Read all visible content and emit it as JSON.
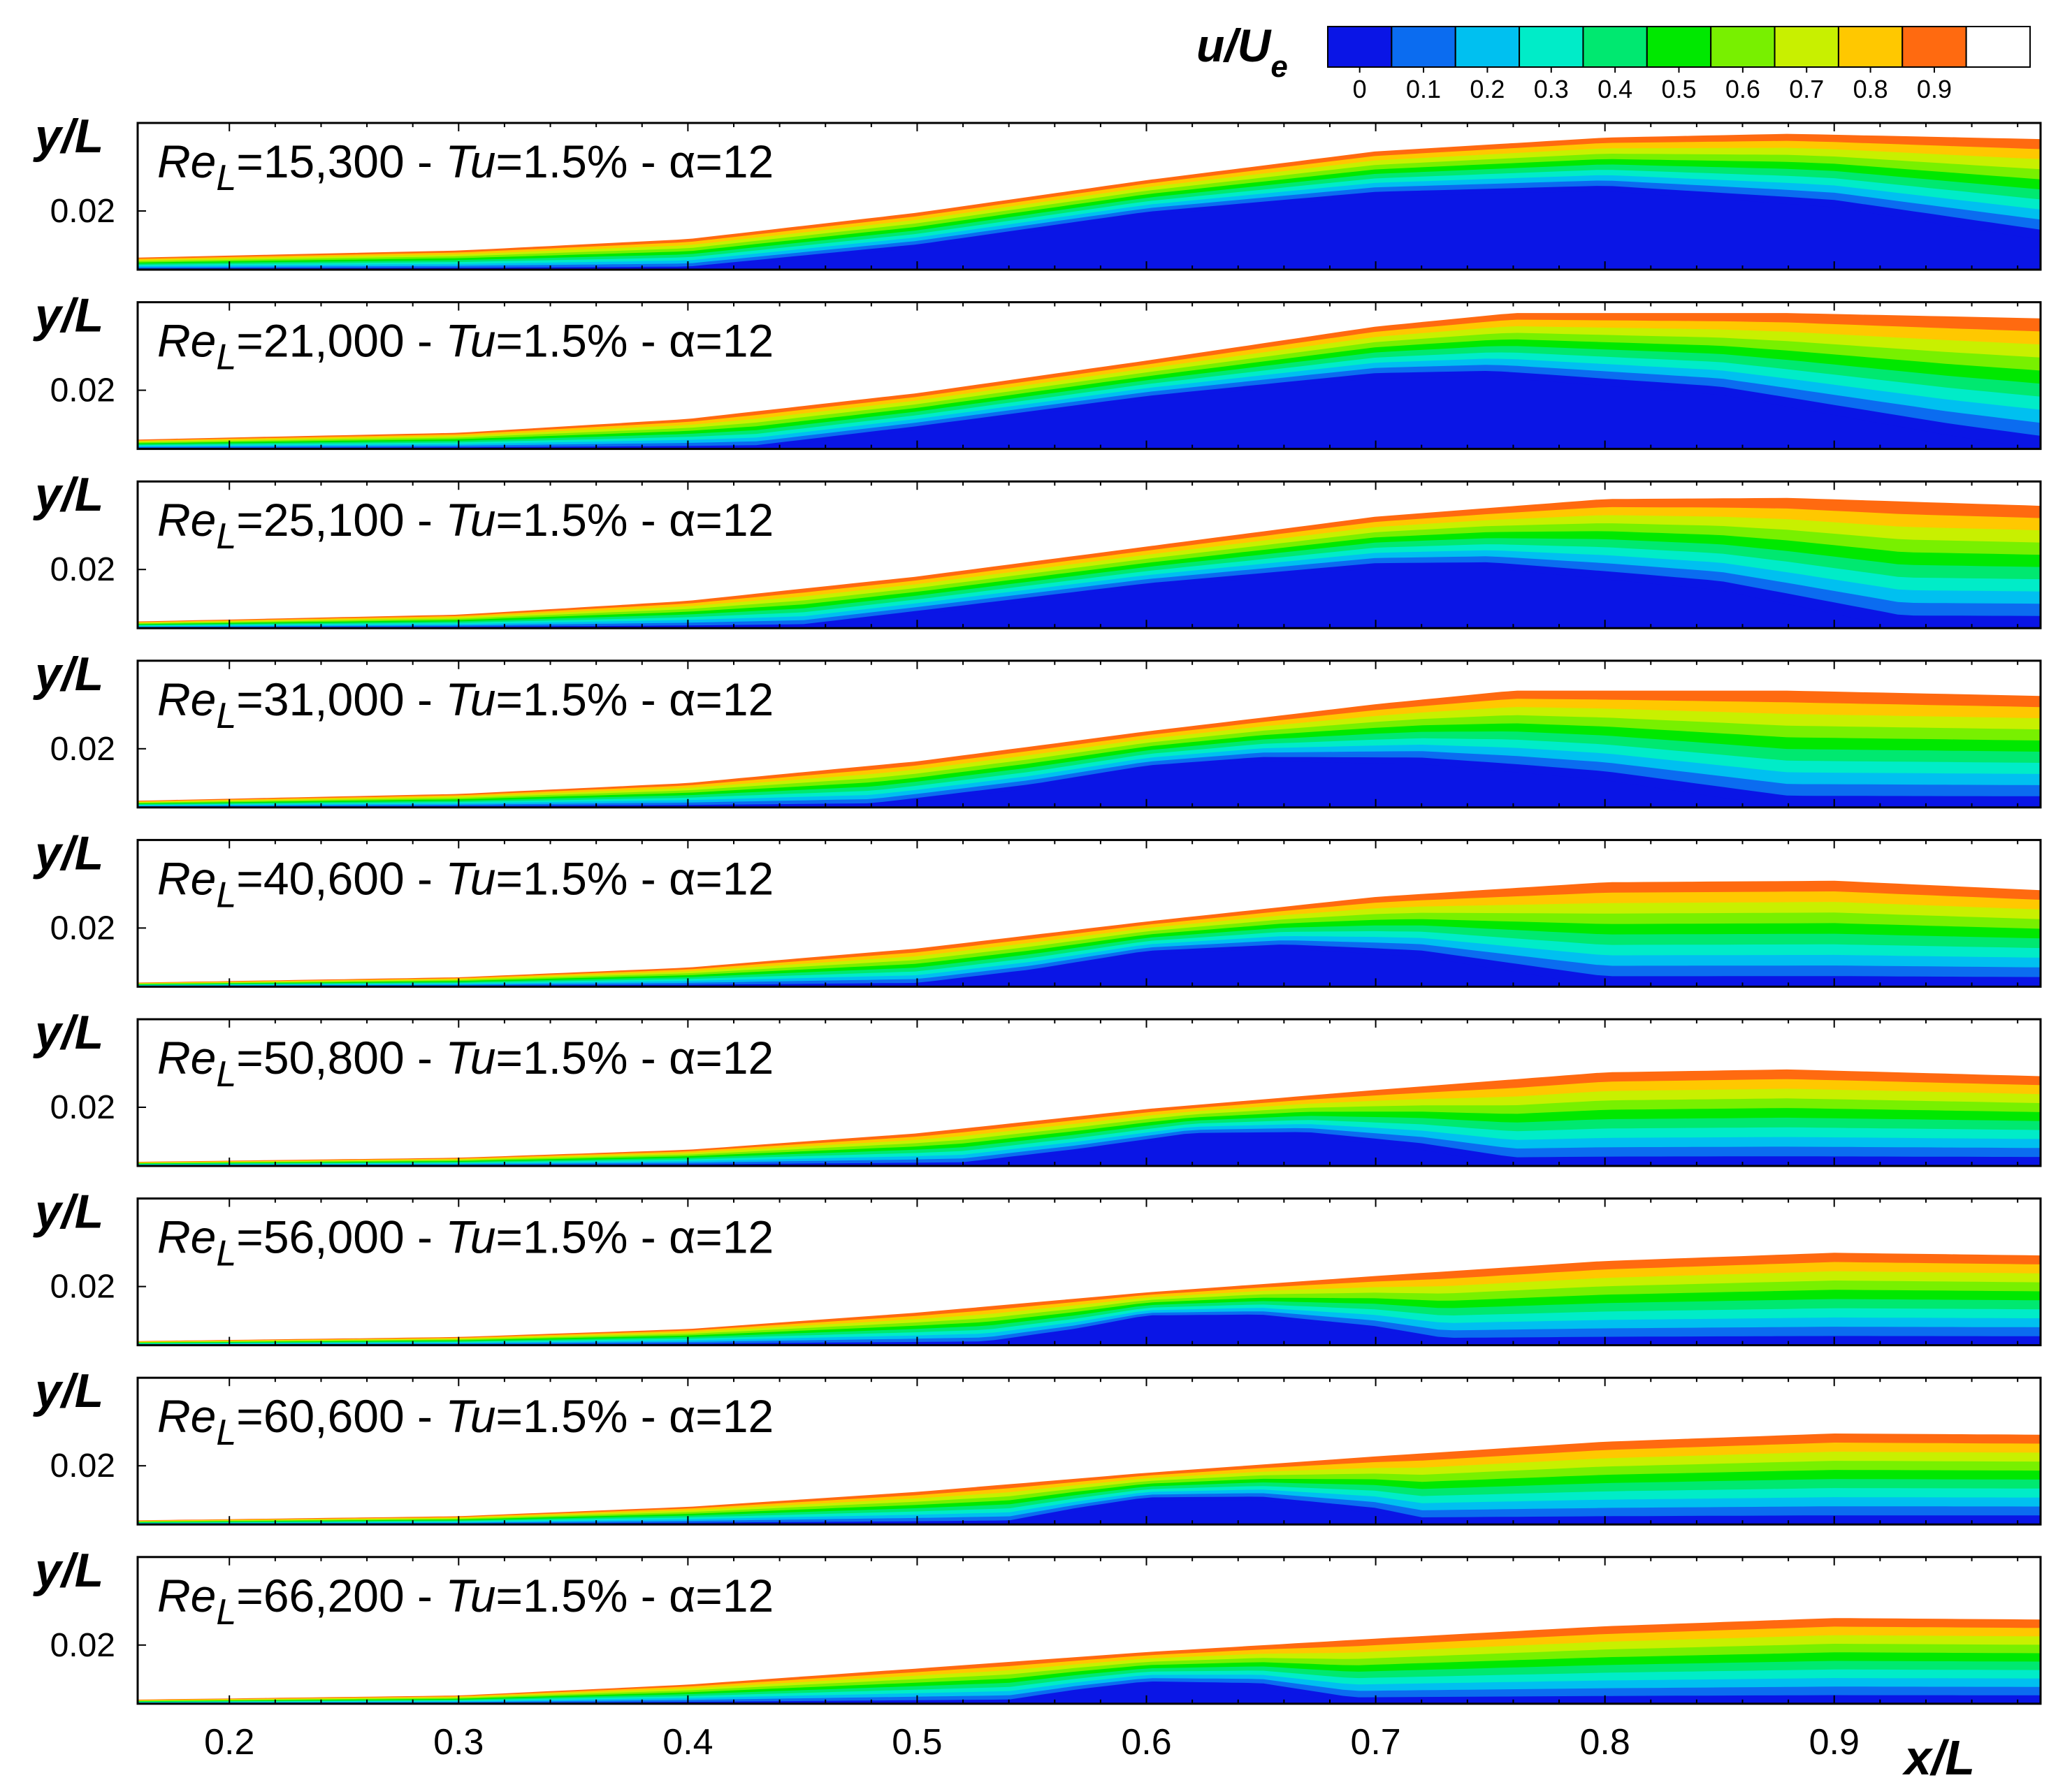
{
  "chart_data": {
    "type": "heatmap",
    "colorbar": {
      "label_main": "u/U",
      "label_sub": "e",
      "levels": [
        0,
        0.1,
        0.2,
        0.3,
        0.4,
        0.5,
        0.6,
        0.7,
        0.8,
        0.9,
        1.0
      ],
      "tick_labels": [
        "0",
        "0.1",
        "0.2",
        "0.3",
        "0.4",
        "0.5",
        "0.6",
        "0.7",
        "0.8",
        "0.9"
      ],
      "colors": [
        "#0a15e6",
        "#0b6cf0",
        "#00c0f0",
        "#00ecc8",
        "#00e870",
        "#00e800",
        "#78f000",
        "#c8f000",
        "#ffc800",
        "#ff6a10",
        "#ffffff"
      ]
    },
    "x_axis": {
      "label": "x/L",
      "range": [
        0.16,
        0.99
      ],
      "tick_values": [
        0.2,
        0.3,
        0.4,
        0.5,
        0.6,
        0.7,
        0.8,
        0.9
      ],
      "tick_labels": [
        "0.2",
        "0.3",
        "0.4",
        "0.5",
        "0.6",
        "0.7",
        "0.8",
        "0.9"
      ]
    },
    "y_axis": {
      "label": "y/L",
      "range": [
        0,
        0.05
      ],
      "tick_value": 0.02,
      "tick_label": "0.02"
    },
    "panels": [
      {
        "re_prefix": "Re",
        "re_sub": "L",
        "re_value": "=15,300 - ",
        "tu_prefix": "Tu",
        "tu_value": "=1.5% - α=12",
        "bl_edge": [
          [
            0.16,
            0.0041
          ],
          [
            0.3,
            0.0065
          ],
          [
            0.4,
            0.0104
          ],
          [
            0.5,
            0.0194
          ],
          [
            0.6,
            0.0305
          ],
          [
            0.7,
            0.0403
          ],
          [
            0.8,
            0.045
          ],
          [
            0.88,
            0.0463
          ],
          [
            0.99,
            0.0445
          ]
        ],
        "bubble_top": [
          [
            0.4,
            0.0
          ],
          [
            0.5,
            0.0074
          ],
          [
            0.6,
            0.0185
          ],
          [
            0.7,
            0.025
          ],
          [
            0.8,
            0.0268
          ],
          [
            0.9,
            0.0213
          ],
          [
            0.99,
            0.0102
          ]
        ]
      },
      {
        "re_prefix": "Re",
        "re_sub": "L",
        "re_value": "=21,000 - ",
        "tu_prefix": "Tu",
        "tu_value": "=1.5% - α=12",
        "bl_edge": [
          [
            0.16,
            0.0032
          ],
          [
            0.3,
            0.0055
          ],
          [
            0.4,
            0.0102
          ],
          [
            0.5,
            0.019
          ],
          [
            0.6,
            0.0301
          ],
          [
            0.7,
            0.0417
          ],
          [
            0.76,
            0.0463
          ],
          [
            0.88,
            0.0463
          ],
          [
            0.99,
            0.0445
          ]
        ],
        "bubble_top": [
          [
            0.43,
            0.0
          ],
          [
            0.5,
            0.0065
          ],
          [
            0.6,
            0.0167
          ],
          [
            0.7,
            0.0241
          ],
          [
            0.75,
            0.0245
          ],
          [
            0.85,
            0.0185
          ],
          [
            0.95,
            0.0046
          ],
          [
            0.99,
            0.0
          ]
        ]
      },
      {
        "re_prefix": "Re",
        "re_sub": "L",
        "re_value": "=25,100 - ",
        "tu_prefix": "Tu",
        "tu_value": "=1.5% - α=12",
        "bl_edge": [
          [
            0.16,
            0.0023
          ],
          [
            0.3,
            0.0046
          ],
          [
            0.4,
            0.0093
          ],
          [
            0.5,
            0.0176
          ],
          [
            0.6,
            0.0278
          ],
          [
            0.7,
            0.038
          ],
          [
            0.8,
            0.044
          ],
          [
            0.88,
            0.0444
          ],
          [
            0.99,
            0.0417
          ]
        ],
        "bubble_top": [
          [
            0.45,
            0.0
          ],
          [
            0.5,
            0.0046
          ],
          [
            0.6,
            0.0139
          ],
          [
            0.7,
            0.0204
          ],
          [
            0.75,
            0.0204
          ],
          [
            0.85,
            0.013
          ],
          [
            0.93,
            0.0
          ],
          [
            0.99,
            0.0
          ]
        ]
      },
      {
        "re_prefix": "Re",
        "re_sub": "L",
        "re_value": "=31,000 - ",
        "tu_prefix": "Tu",
        "tu_value": "=1.5% - α=12",
        "bl_edge": [
          [
            0.16,
            0.0023
          ],
          [
            0.3,
            0.0046
          ],
          [
            0.4,
            0.0083
          ],
          [
            0.5,
            0.0157
          ],
          [
            0.6,
            0.0259
          ],
          [
            0.7,
            0.0352
          ],
          [
            0.76,
            0.0398
          ],
          [
            0.88,
            0.0398
          ],
          [
            0.99,
            0.038
          ]
        ],
        "bubble_top": [
          [
            0.48,
            0.0
          ],
          [
            0.55,
            0.0065
          ],
          [
            0.6,
            0.013
          ],
          [
            0.65,
            0.0157
          ],
          [
            0.72,
            0.0148
          ],
          [
            0.8,
            0.0093
          ],
          [
            0.88,
            0.0
          ],
          [
            0.99,
            0.0
          ]
        ]
      },
      {
        "re_prefix": "Re",
        "re_sub": "L",
        "re_value": "=40,600 - ",
        "tu_prefix": "Tu",
        "tu_value": "=1.5% - α=12",
        "bl_edge": [
          [
            0.16,
            0.0014
          ],
          [
            0.3,
            0.0032
          ],
          [
            0.4,
            0.0065
          ],
          [
            0.5,
            0.013
          ],
          [
            0.6,
            0.0222
          ],
          [
            0.7,
            0.0306
          ],
          [
            0.8,
            0.0356
          ],
          [
            0.9,
            0.0361
          ],
          [
            0.99,
            0.0329
          ]
        ],
        "bubble_top": [
          [
            0.5,
            0.0
          ],
          [
            0.55,
            0.0046
          ],
          [
            0.6,
            0.0111
          ],
          [
            0.66,
            0.013
          ],
          [
            0.72,
            0.0102
          ],
          [
            0.8,
            0.0
          ],
          [
            0.99,
            0.0
          ]
        ]
      },
      {
        "re_prefix": "Re",
        "re_sub": "L",
        "re_value": "=50,800 - ",
        "tu_prefix": "Tu",
        "tu_value": "=1.5% - α=12",
        "bl_edge": [
          [
            0.16,
            0.0014
          ],
          [
            0.3,
            0.0028
          ],
          [
            0.4,
            0.0055
          ],
          [
            0.5,
            0.0111
          ],
          [
            0.6,
            0.0194
          ],
          [
            0.7,
            0.0259
          ],
          [
            0.8,
            0.0319
          ],
          [
            0.88,
            0.0329
          ],
          [
            0.99,
            0.0306
          ]
        ],
        "bubble_top": [
          [
            0.52,
            0.0
          ],
          [
            0.57,
            0.0046
          ],
          [
            0.62,
            0.0102
          ],
          [
            0.67,
            0.0102
          ],
          [
            0.72,
            0.0056
          ],
          [
            0.76,
            0.0
          ],
          [
            0.99,
            0.0
          ]
        ]
      },
      {
        "re_prefix": "Re",
        "re_sub": "L",
        "re_value": "=56,000 - ",
        "tu_prefix": "Tu",
        "tu_value": "=1.5% - α=12",
        "bl_edge": [
          [
            0.16,
            0.0014
          ],
          [
            0.3,
            0.0028
          ],
          [
            0.4,
            0.0055
          ],
          [
            0.5,
            0.0111
          ],
          [
            0.6,
            0.018
          ],
          [
            0.7,
            0.0236
          ],
          [
            0.8,
            0.0287
          ],
          [
            0.9,
            0.0315
          ],
          [
            0.99,
            0.0306
          ]
        ],
        "bubble_top": [
          [
            0.53,
            0.0
          ],
          [
            0.57,
            0.0046
          ],
          [
            0.6,
            0.0093
          ],
          [
            0.65,
            0.0093
          ],
          [
            0.7,
            0.0046
          ],
          [
            0.73,
            0.0
          ],
          [
            0.99,
            0.0
          ]
        ]
      },
      {
        "re_prefix": "Re",
        "re_sub": "L",
        "re_value": "=60,600 - ",
        "tu_prefix": "Tu",
        "tu_value": "=1.5% - α=12",
        "bl_edge": [
          [
            0.16,
            0.0014
          ],
          [
            0.3,
            0.0028
          ],
          [
            0.4,
            0.006
          ],
          [
            0.5,
            0.0111
          ],
          [
            0.6,
            0.0176
          ],
          [
            0.7,
            0.0232
          ],
          [
            0.8,
            0.0282
          ],
          [
            0.9,
            0.031
          ],
          [
            0.99,
            0.0306
          ]
        ],
        "bubble_top": [
          [
            0.54,
            0.0
          ],
          [
            0.57,
            0.0046
          ],
          [
            0.6,
            0.0083
          ],
          [
            0.65,
            0.0083
          ],
          [
            0.7,
            0.0037
          ],
          [
            0.72,
            0.0
          ],
          [
            0.99,
            0.0
          ]
        ]
      },
      {
        "re_prefix": "Re",
        "re_sub": "L",
        "re_value": "=66,200 - ",
        "tu_prefix": "Tu",
        "tu_value": "=1.5% - α=12",
        "bl_edge": [
          [
            0.16,
            0.0014
          ],
          [
            0.3,
            0.0028
          ],
          [
            0.4,
            0.0065
          ],
          [
            0.5,
            0.012
          ],
          [
            0.6,
            0.0176
          ],
          [
            0.7,
            0.0222
          ],
          [
            0.8,
            0.0264
          ],
          [
            0.9,
            0.0292
          ],
          [
            0.99,
            0.0287
          ]
        ],
        "bubble_top": [
          [
            0.54,
            0.0
          ],
          [
            0.57,
            0.0037
          ],
          [
            0.6,
            0.0065
          ],
          [
            0.65,
            0.0056
          ],
          [
            0.69,
            0.0
          ],
          [
            0.99,
            0.0
          ]
        ]
      }
    ]
  }
}
